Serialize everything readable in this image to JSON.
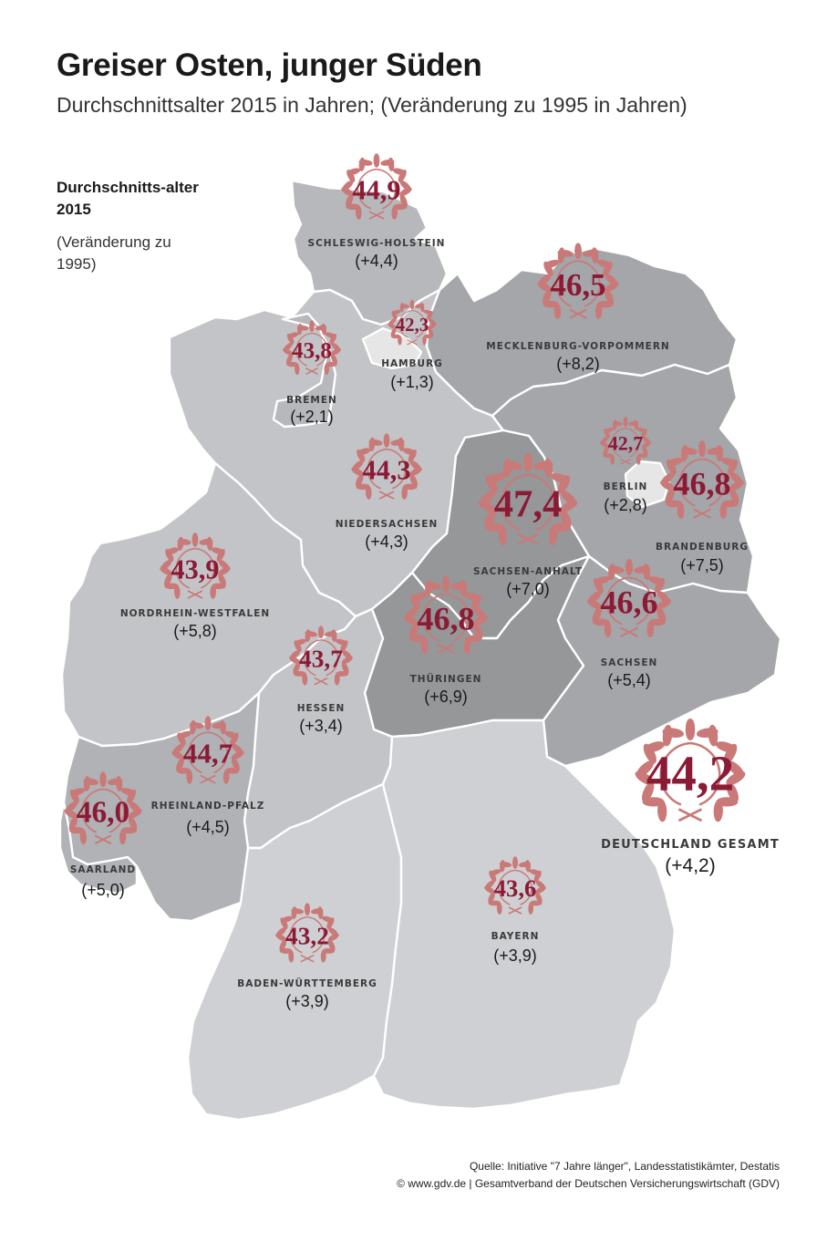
{
  "title": "Greiser Osten, junger Süden",
  "subtitle": "Durchschnittsalter 2015 in Jahren; (Veränderung zu 1995 in Jahren)",
  "legend": {
    "title": "Durchschnitts-alter 2015",
    "subtitle": "(Veränderung zu 1995)"
  },
  "colors": {
    "value_text": "#8b1a35",
    "laurel": "#c97a78",
    "shade_dark": "#a1a3a7",
    "shade_mid": "#b3b5b9",
    "shade_light": "#c9cacd",
    "shade_city": "#e8e8e9"
  },
  "states": [
    {
      "name": "SCHLESWIG-HOLSTEIN",
      "value": "44,9",
      "change": "(+4,4)",
      "shade": "light"
    },
    {
      "name": "HAMBURG",
      "value": "42,3",
      "change": "(+1,3)",
      "shade": "city"
    },
    {
      "name": "MECKLENBURG-VORPOMMERN",
      "value": "46,5",
      "change": "(+8,2)",
      "shade": "dark"
    },
    {
      "name": "BREMEN",
      "value": "43,8",
      "change": "(+2,1)",
      "shade": "light"
    },
    {
      "name": "NIEDERSACHSEN",
      "value": "44,3",
      "change": "(+4,3)",
      "shade": "light"
    },
    {
      "name": "BERLIN",
      "value": "42,7",
      "change": "(+2,8)",
      "shade": "city"
    },
    {
      "name": "BRANDENBURG",
      "value": "46,8",
      "change": "(+7,5)",
      "shade": "dark"
    },
    {
      "name": "SACHSEN-ANHALT",
      "value": "47,4",
      "change": "(+7,0)",
      "shade": "darkest"
    },
    {
      "name": "NORDRHEIN-WESTFALEN",
      "value": "43,9",
      "change": "(+5,8)",
      "shade": "light"
    },
    {
      "name": "THÜRINGEN",
      "value": "46,8",
      "change": "(+6,9)",
      "shade": "darkest"
    },
    {
      "name": "SACHSEN",
      "value": "46,6",
      "change": "(+5,4)",
      "shade": "dark"
    },
    {
      "name": "HESSEN",
      "value": "43,7",
      "change": "(+3,4)",
      "shade": "light"
    },
    {
      "name": "RHEINLAND-PFALZ",
      "value": "44,7",
      "change": "(+4,5)",
      "shade": "mid"
    },
    {
      "name": "SAARLAND",
      "value": "46,0",
      "change": "(+5,0)",
      "shade": "mid"
    },
    {
      "name": "BAYERN",
      "value": "43,6",
      "change": "(+3,9)",
      "shade": "lightest"
    },
    {
      "name": "BADEN-WÜRTTEMBERG",
      "value": "43,2",
      "change": "(+3,9)",
      "shade": "lightest"
    }
  ],
  "national": {
    "name": "DEUTSCHLAND GESAMT",
    "value": "44,2",
    "change": "(+4,2)"
  },
  "source": {
    "line1": "Quelle: Initiative \"7 Jahre länger\", Landesstatistikämter, Destatis",
    "line2": "© www.gdv.de | Gesamtverband der Deutschen Versicherungswirtschaft (GDV)"
  }
}
